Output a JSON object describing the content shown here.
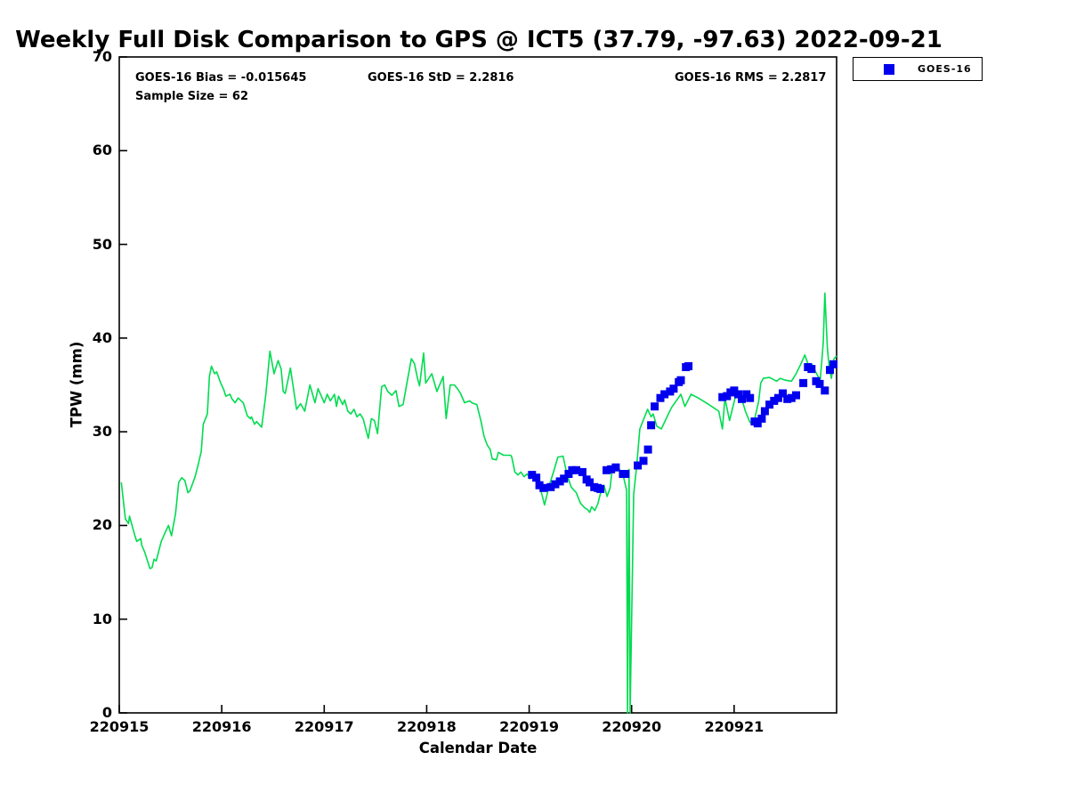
{
  "title": "Weekly Full Disk Comparison to GPS @ ICT5 (37.79, -97.63) 2022-09-21",
  "annotations": {
    "bias": "GOES-16 Bias = -0.015645",
    "std": "GOES-16 StD = 2.2816",
    "rms": "GOES-16 RMS = 2.2817",
    "sample_size": "Sample Size = 62"
  },
  "legend": {
    "label": "GOES-16"
  },
  "colors": {
    "gps_line": "#00dc50",
    "goes_marker": "#0000ee",
    "axis": "#000000",
    "text": "#000000"
  },
  "chart_data": {
    "type": "line+scatter",
    "title": "Weekly Full Disk Comparison to GPS @ ICT5 (37.79, -97.63) 2022-09-21",
    "xlabel": "Calendar Date",
    "ylabel": "TPW (mm)",
    "xlim": [
      0,
      7
    ],
    "ylim": [
      0,
      70
    ],
    "yticks": [
      0,
      10,
      20,
      30,
      40,
      50,
      60,
      70
    ],
    "xticks": {
      "positions": [
        0,
        1,
        2,
        3,
        4,
        5,
        6
      ],
      "labels": [
        "220915",
        "220916",
        "220917",
        "220918",
        "220919",
        "220920",
        "220921"
      ]
    },
    "x_units": "days since 220915",
    "grid": false,
    "legend_position": "top-right-outside",
    "stats": {
      "bias": -0.015645,
      "std": 2.2816,
      "rms": 2.2817,
      "sample_size": 62
    },
    "series": [
      {
        "name": "GPS",
        "type": "line",
        "points": [
          [
            0.02,
            24.6
          ],
          [
            0.06,
            20.7
          ],
          [
            0.09,
            20.2
          ],
          [
            0.1,
            21.0
          ],
          [
            0.15,
            19.0
          ],
          [
            0.17,
            18.3
          ],
          [
            0.21,
            18.6
          ],
          [
            0.22,
            17.9
          ],
          [
            0.25,
            17.1
          ],
          [
            0.3,
            15.4
          ],
          [
            0.32,
            15.5
          ],
          [
            0.34,
            16.4
          ],
          [
            0.36,
            16.2
          ],
          [
            0.41,
            18.3
          ],
          [
            0.45,
            19.3
          ],
          [
            0.48,
            20.0
          ],
          [
            0.51,
            18.9
          ],
          [
            0.55,
            21.3
          ],
          [
            0.58,
            24.6
          ],
          [
            0.61,
            25.1
          ],
          [
            0.64,
            24.8
          ],
          [
            0.67,
            23.5
          ],
          [
            0.69,
            23.7
          ],
          [
            0.74,
            25.2
          ],
          [
            0.77,
            26.5
          ],
          [
            0.8,
            27.9
          ],
          [
            0.82,
            30.8
          ],
          [
            0.86,
            31.9
          ],
          [
            0.88,
            35.9
          ],
          [
            0.9,
            37.0
          ],
          [
            0.93,
            36.2
          ],
          [
            0.95,
            36.4
          ],
          [
            0.99,
            35.2
          ],
          [
            1.02,
            34.5
          ],
          [
            1.04,
            33.8
          ],
          [
            1.08,
            34.0
          ],
          [
            1.1,
            33.5
          ],
          [
            1.13,
            33.1
          ],
          [
            1.16,
            33.6
          ],
          [
            1.19,
            33.3
          ],
          [
            1.21,
            33.1
          ],
          [
            1.25,
            31.7
          ],
          [
            1.28,
            31.4
          ],
          [
            1.29,
            31.6
          ],
          [
            1.32,
            30.8
          ],
          [
            1.34,
            31.1
          ],
          [
            1.38,
            30.6
          ],
          [
            1.39,
            30.5
          ],
          [
            1.43,
            34.0
          ],
          [
            1.47,
            38.6
          ],
          [
            1.51,
            36.2
          ],
          [
            1.55,
            37.6
          ],
          [
            1.58,
            36.7
          ],
          [
            1.6,
            34.3
          ],
          [
            1.62,
            34.1
          ],
          [
            1.67,
            36.8
          ],
          [
            1.73,
            32.4
          ],
          [
            1.77,
            33.0
          ],
          [
            1.81,
            32.2
          ],
          [
            1.86,
            35.0
          ],
          [
            1.91,
            33.1
          ],
          [
            1.94,
            34.6
          ],
          [
            2.0,
            33.1
          ],
          [
            2.03,
            34.0
          ],
          [
            2.06,
            33.3
          ],
          [
            2.1,
            34.0
          ],
          [
            2.12,
            32.7
          ],
          [
            2.14,
            33.8
          ],
          [
            2.18,
            32.9
          ],
          [
            2.2,
            33.4
          ],
          [
            2.23,
            32.2
          ],
          [
            2.26,
            31.9
          ],
          [
            2.29,
            32.4
          ],
          [
            2.32,
            31.6
          ],
          [
            2.35,
            31.9
          ],
          [
            2.38,
            31.4
          ],
          [
            2.43,
            29.3
          ],
          [
            2.46,
            31.4
          ],
          [
            2.49,
            31.2
          ],
          [
            2.52,
            29.8
          ],
          [
            2.56,
            34.8
          ],
          [
            2.59,
            35.0
          ],
          [
            2.62,
            34.3
          ],
          [
            2.66,
            33.9
          ],
          [
            2.7,
            34.4
          ],
          [
            2.73,
            32.7
          ],
          [
            2.77,
            32.9
          ],
          [
            2.81,
            35.4
          ],
          [
            2.85,
            37.8
          ],
          [
            2.88,
            37.3
          ],
          [
            2.91,
            35.7
          ],
          [
            2.93,
            34.9
          ],
          [
            2.97,
            38.4
          ],
          [
            2.99,
            35.2
          ],
          [
            3.05,
            36.2
          ],
          [
            3.1,
            34.3
          ],
          [
            3.16,
            35.9
          ],
          [
            3.19,
            31.4
          ],
          [
            3.23,
            35.0
          ],
          [
            3.27,
            35.0
          ],
          [
            3.3,
            34.6
          ],
          [
            3.33,
            34.1
          ],
          [
            3.37,
            33.1
          ],
          [
            3.42,
            33.3
          ],
          [
            3.44,
            33.1
          ],
          [
            3.49,
            32.9
          ],
          [
            3.53,
            31.1
          ],
          [
            3.56,
            29.5
          ],
          [
            3.59,
            28.6
          ],
          [
            3.62,
            28.1
          ],
          [
            3.64,
            27.1
          ],
          [
            3.68,
            27.0
          ],
          [
            3.7,
            27.8
          ],
          [
            3.75,
            27.5
          ],
          [
            3.82,
            27.5
          ],
          [
            3.83,
            27.3
          ],
          [
            3.86,
            25.7
          ],
          [
            3.89,
            25.4
          ],
          [
            3.92,
            25.7
          ],
          [
            3.95,
            25.2
          ],
          [
            3.98,
            25.5
          ],
          [
            4.01,
            25.0
          ],
          [
            4.03,
            25.2
          ],
          [
            4.08,
            24.9
          ],
          [
            4.12,
            23.5
          ],
          [
            4.15,
            22.2
          ],
          [
            4.2,
            24.4
          ],
          [
            4.24,
            25.8
          ],
          [
            4.28,
            27.3
          ],
          [
            4.33,
            27.4
          ],
          [
            4.37,
            25.4
          ],
          [
            4.41,
            24.1
          ],
          [
            4.46,
            23.5
          ],
          [
            4.5,
            22.4
          ],
          [
            4.54,
            21.9
          ],
          [
            4.57,
            21.7
          ],
          [
            4.59,
            21.4
          ],
          [
            4.61,
            22.0
          ],
          [
            4.64,
            21.6
          ],
          [
            4.67,
            22.3
          ],
          [
            4.7,
            23.6
          ],
          [
            4.73,
            24.3
          ],
          [
            4.76,
            23.1
          ],
          [
            4.79,
            24.0
          ],
          [
            4.81,
            26.0
          ],
          [
            4.86,
            26.4
          ],
          [
            4.92,
            25.2
          ],
          [
            4.95,
            23.8
          ],
          [
            4.96,
            0.0
          ],
          [
            4.975,
            26.0
          ],
          [
            4.985,
            0.0
          ],
          [
            5.02,
            23.3
          ],
          [
            5.05,
            26.5
          ],
          [
            5.08,
            30.3
          ],
          [
            5.155,
            32.4
          ],
          [
            5.19,
            31.6
          ],
          [
            5.21,
            31.9
          ],
          [
            5.245,
            30.6
          ],
          [
            5.29,
            30.3
          ],
          [
            5.35,
            31.7
          ],
          [
            5.39,
            32.6
          ],
          [
            5.48,
            34.0
          ],
          [
            5.52,
            32.7
          ],
          [
            5.58,
            34.0
          ],
          [
            5.65,
            33.6
          ],
          [
            5.74,
            33.0
          ],
          [
            5.85,
            32.2
          ],
          [
            5.886,
            30.3
          ],
          [
            5.91,
            33.6
          ],
          [
            5.955,
            31.2
          ],
          [
            6.02,
            34.1
          ],
          [
            6.04,
            34.3
          ],
          [
            6.08,
            33.3
          ],
          [
            6.11,
            32.2
          ],
          [
            6.155,
            31.0
          ],
          [
            6.19,
            30.8
          ],
          [
            6.24,
            33.3
          ],
          [
            6.26,
            35.2
          ],
          [
            6.285,
            35.7
          ],
          [
            6.345,
            35.8
          ],
          [
            6.415,
            35.4
          ],
          [
            6.45,
            35.7
          ],
          [
            6.5,
            35.5
          ],
          [
            6.56,
            35.4
          ],
          [
            6.605,
            36.2
          ],
          [
            6.65,
            37.2
          ],
          [
            6.69,
            38.2
          ],
          [
            6.735,
            36.8
          ],
          [
            6.76,
            37.2
          ],
          [
            6.805,
            36.2
          ],
          [
            6.84,
            35.5
          ],
          [
            6.87,
            39.5
          ],
          [
            6.885,
            44.8
          ],
          [
            6.91,
            39.0
          ],
          [
            6.925,
            37.1
          ],
          [
            6.95,
            35.7
          ],
          [
            6.975,
            37.8
          ],
          [
            7.0,
            38.1
          ]
        ]
      },
      {
        "name": "GOES-16",
        "type": "scatter",
        "points": [
          [
            4.028,
            25.4
          ],
          [
            4.07,
            25.1
          ],
          [
            4.1,
            24.3
          ],
          [
            4.14,
            24.0
          ],
          [
            4.21,
            24.1
          ],
          [
            4.255,
            24.4
          ],
          [
            4.3,
            24.7
          ],
          [
            4.34,
            25.0
          ],
          [
            4.385,
            25.5
          ],
          [
            4.42,
            25.9
          ],
          [
            4.46,
            25.9
          ],
          [
            4.52,
            25.7
          ],
          [
            4.56,
            24.9
          ],
          [
            4.59,
            24.6
          ],
          [
            4.635,
            24.1
          ],
          [
            4.67,
            24.0
          ],
          [
            4.695,
            23.9
          ],
          [
            4.755,
            25.9
          ],
          [
            4.8,
            26.0
          ],
          [
            4.845,
            26.2
          ],
          [
            4.915,
            25.5
          ],
          [
            4.94,
            25.5
          ],
          [
            5.06,
            26.4
          ],
          [
            5.115,
            26.9
          ],
          [
            5.16,
            28.1
          ],
          [
            5.19,
            30.7
          ],
          [
            5.225,
            32.7
          ],
          [
            5.28,
            33.6
          ],
          [
            5.32,
            34.0
          ],
          [
            5.375,
            34.3
          ],
          [
            5.41,
            34.6
          ],
          [
            5.46,
            35.3
          ],
          [
            5.48,
            35.5
          ],
          [
            5.53,
            36.9
          ],
          [
            5.555,
            37.0
          ],
          [
            5.886,
            33.7
          ],
          [
            5.93,
            33.8
          ],
          [
            5.965,
            34.2
          ],
          [
            6.0,
            34.4
          ],
          [
            6.04,
            34.0
          ],
          [
            6.075,
            33.5
          ],
          [
            6.12,
            34.0
          ],
          [
            6.155,
            33.6
          ],
          [
            6.2,
            31.1
          ],
          [
            6.23,
            30.9
          ],
          [
            6.27,
            31.4
          ],
          [
            6.3,
            32.2
          ],
          [
            6.345,
            32.9
          ],
          [
            6.39,
            33.3
          ],
          [
            6.43,
            33.6
          ],
          [
            6.475,
            34.1
          ],
          [
            6.52,
            33.5
          ],
          [
            6.56,
            33.6
          ],
          [
            6.605,
            33.9
          ],
          [
            6.675,
            35.2
          ],
          [
            6.72,
            36.9
          ],
          [
            6.755,
            36.7
          ],
          [
            6.8,
            35.4
          ],
          [
            6.835,
            35.1
          ],
          [
            6.885,
            34.4
          ],
          [
            6.935,
            36.6
          ],
          [
            6.97,
            37.2
          ]
        ]
      }
    ]
  }
}
